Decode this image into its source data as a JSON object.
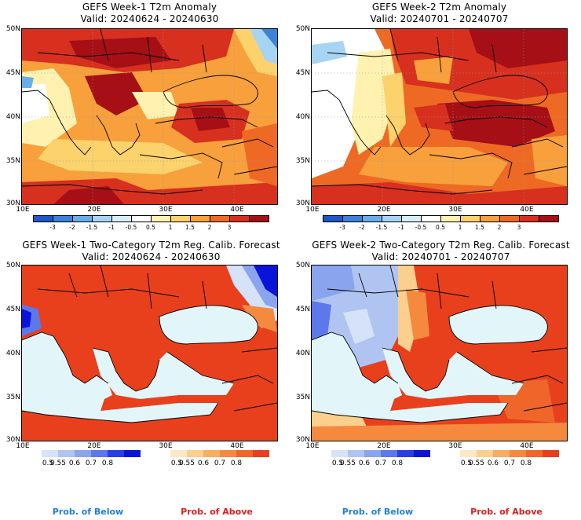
{
  "panels": [
    {
      "title1": "GEFS Week-1 T2m Anomaly",
      "title2": "Valid: 20240624 - 20240630"
    },
    {
      "title1": "GEFS Week-2 T2m Anomaly",
      "title2": "Valid: 20240701 - 20240707"
    },
    {
      "title1": "GEFS Week-1 Two-Category T2m Reg. Calib. Forecast",
      "title2": "Valid: 20240624 - 20240630"
    },
    {
      "title1": "GEFS Week-2 Two-Category T2m Reg. Calib. Forecast",
      "title2": "Valid: 20240701 - 20240707"
    }
  ],
  "lat_labels": [
    "50N",
    "45N",
    "40N",
    "35N",
    "30N"
  ],
  "lon_labels": [
    "10E",
    "20E",
    "30E",
    "40E"
  ],
  "anomaly_colorbar": {
    "ticks": [
      "-3",
      "-2",
      "-1.5",
      "-1",
      "-0.5",
      "0.5",
      "1",
      "1.5",
      "2",
      "3"
    ],
    "colors": [
      "#1f57c8",
      "#3b82d8",
      "#6aaee8",
      "#a8d4f4",
      "#d8eefa",
      "#ffffff",
      "#fff2b0",
      "#fcd26c",
      "#f7a03c",
      "#ee6a24",
      "#d7301f",
      "#a50f15"
    ]
  },
  "prob_below_colorbar": {
    "ticks": [
      "0.5",
      "0.55",
      "0.6",
      "0.7",
      "0.8"
    ],
    "colors": [
      "#d6e2f7",
      "#b0c4f2",
      "#8aa4ee",
      "#5c78ea",
      "#2a3ee8",
      "#0a14d8"
    ]
  },
  "prob_above_colorbar": {
    "ticks": [
      "0.5",
      "0.55",
      "0.6",
      "0.7",
      "0.8"
    ],
    "colors": [
      "#fde9c4",
      "#fbcf8e",
      "#f8ad62",
      "#f58a3e",
      "#f0662a",
      "#e8401c"
    ]
  },
  "legend_labels": {
    "below": "Prob. of Below",
    "above": "Prob. of Above"
  },
  "colors": {
    "below_text": "#1e7fe0",
    "above_text": "#e01e1e",
    "sea_prob": "#e2f6fa"
  }
}
